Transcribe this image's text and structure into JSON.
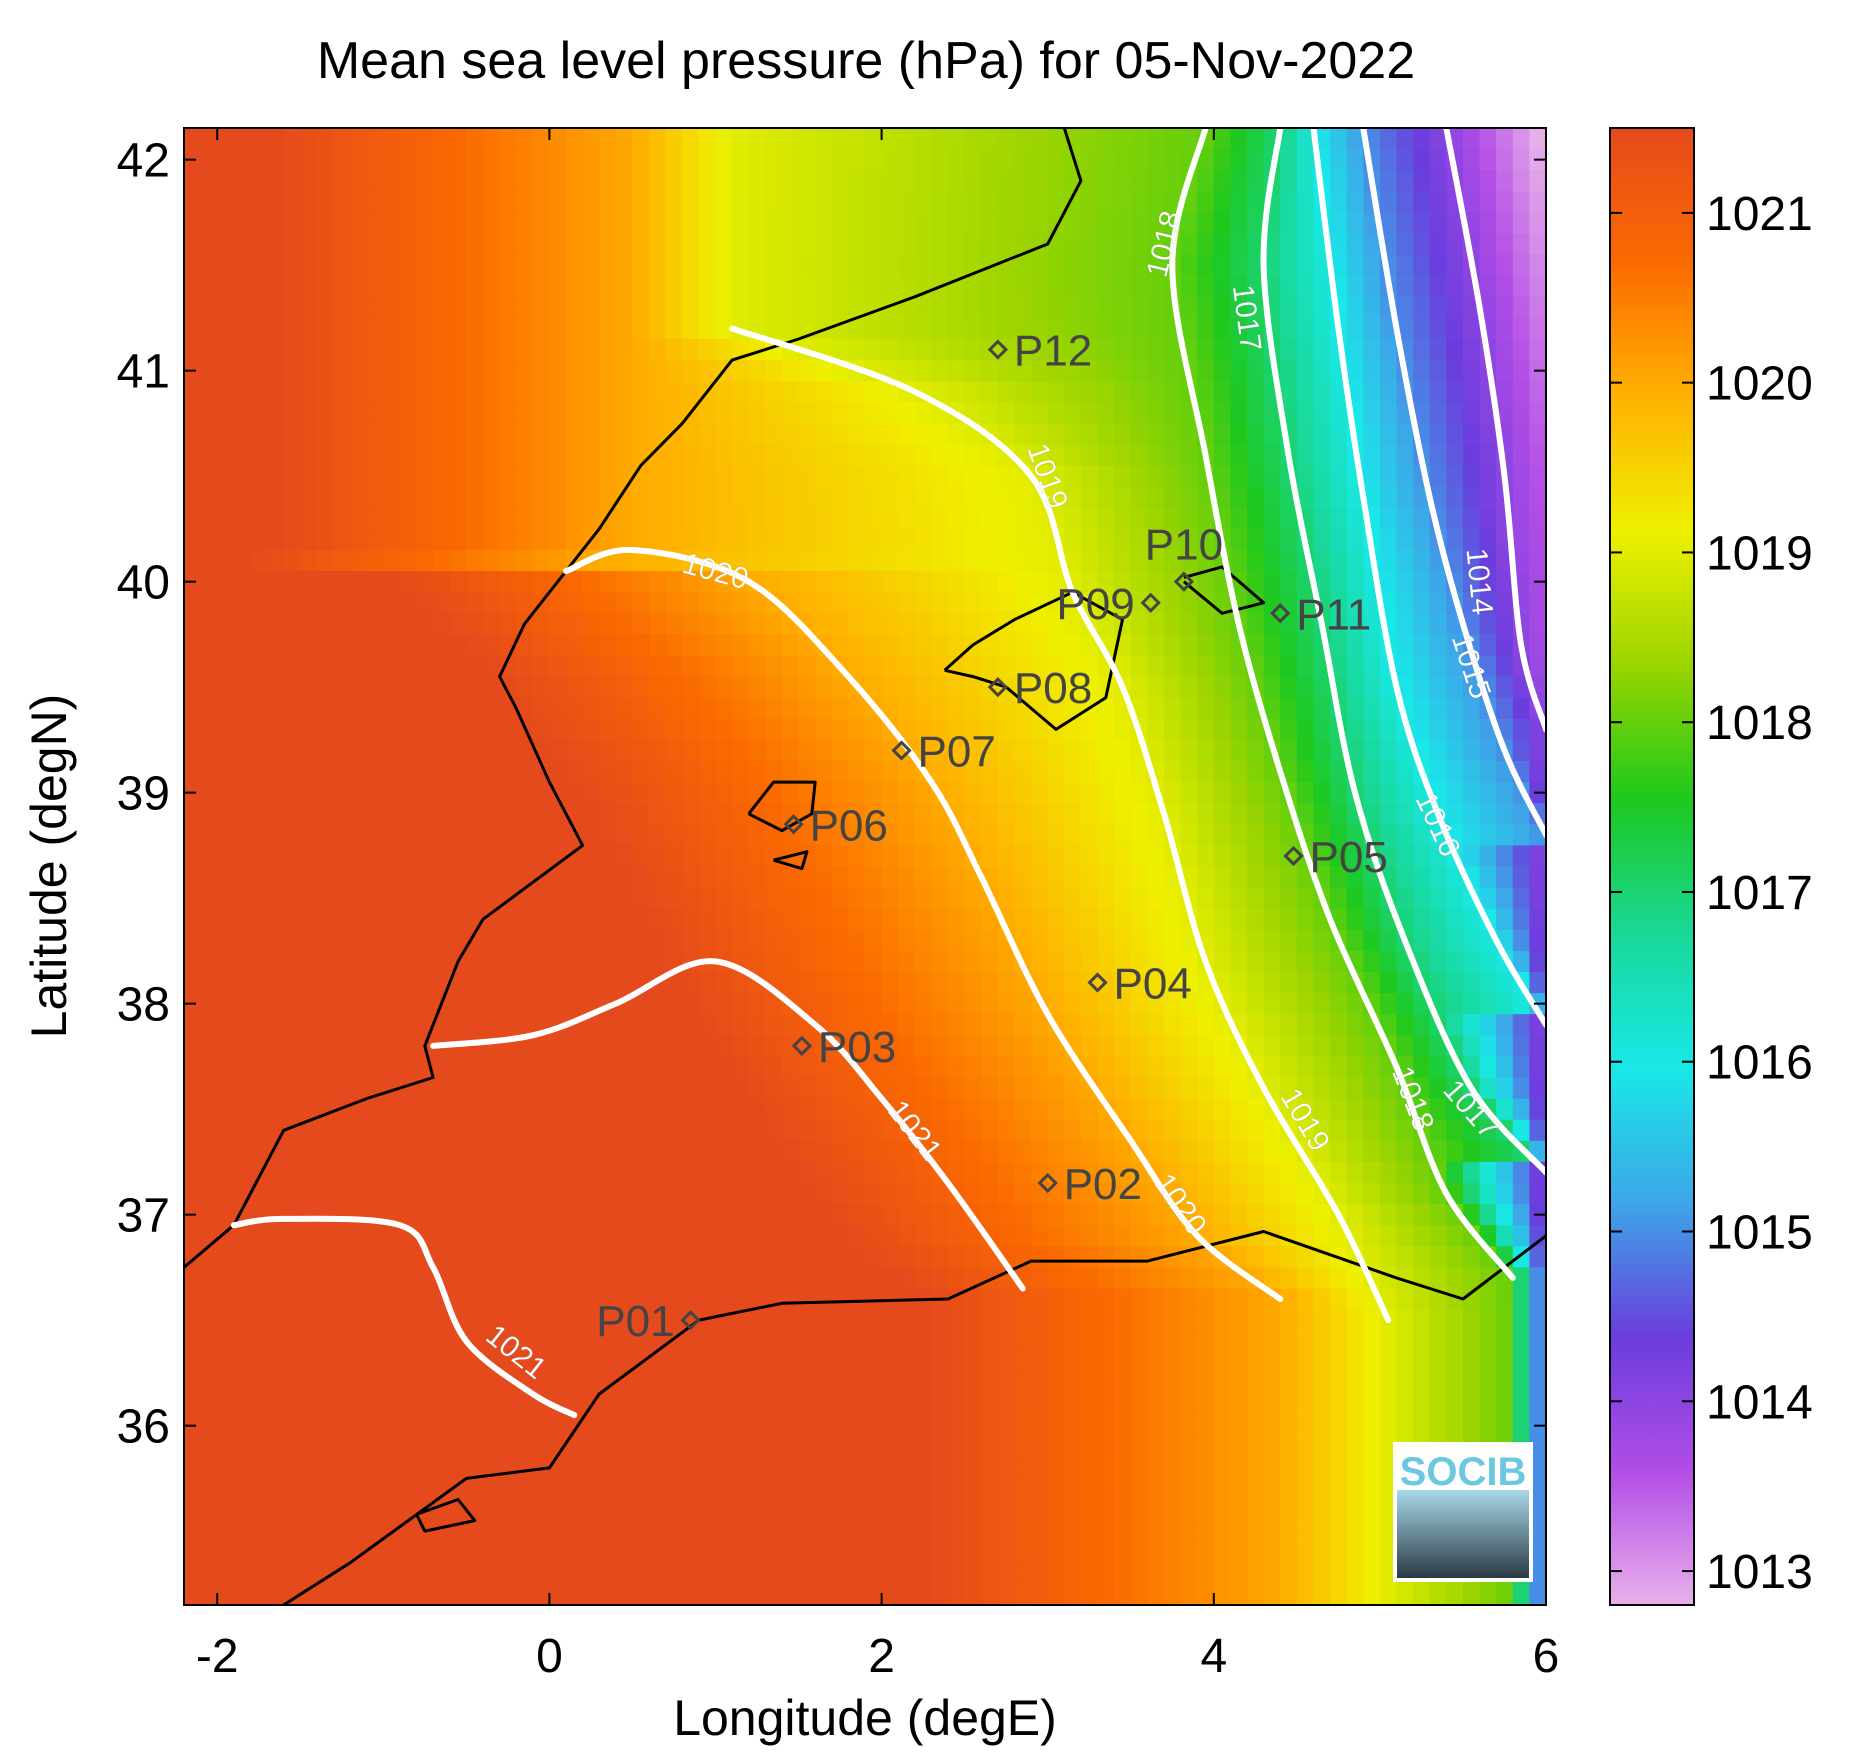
{
  "title": "Mean sea level pressure (hPa) for 05-Nov-2022",
  "xlabel": "Longitude (degE)",
  "ylabel": "Latitude (degN)",
  "logo_text": "SOCIB",
  "chart_data": {
    "type": "heatmap",
    "variable": "Mean sea level pressure",
    "units": "hPa",
    "date": "05-Nov-2022",
    "xlim": [
      -2.2,
      6.0
    ],
    "ylim": [
      35.15,
      42.15
    ],
    "x_ticks": [
      -2,
      0,
      2,
      4,
      6
    ],
    "y_ticks": [
      36,
      37,
      38,
      39,
      40,
      41,
      42
    ],
    "colorbar": {
      "range": [
        1012.8,
        1021.5
      ],
      "ticks": [
        1013,
        1014,
        1015,
        1016,
        1017,
        1018,
        1019,
        1020,
        1021
      ],
      "colors": [
        "#e8b0ea",
        "#b24de6",
        "#6a3ddd",
        "#3da6e8",
        "#19e8e8",
        "#19d898",
        "#1ec81e",
        "#9ad400",
        "#eff000",
        "#ffb100",
        "#fb6a00",
        "#e44a1c"
      ]
    },
    "contours": [
      {
        "level": 1014,
        "label": "1014",
        "label_pos": [
          5.6,
          40.0
        ],
        "points": [
          [
            5.4,
            42.15
          ],
          [
            5.6,
            41.3
          ],
          [
            5.75,
            40.5
          ],
          [
            5.85,
            39.7
          ],
          [
            6.0,
            39.3
          ]
        ]
      },
      {
        "level": 1015,
        "label": "1015",
        "label_pos": [
          5.55,
          39.6
        ],
        "points": [
          [
            4.9,
            42.15
          ],
          [
            5.1,
            41.2
          ],
          [
            5.3,
            40.4
          ],
          [
            5.5,
            39.8
          ],
          [
            5.75,
            39.2
          ],
          [
            6.0,
            38.8
          ]
        ]
      },
      {
        "level": 1016,
        "label": "1016",
        "label_pos": [
          5.35,
          38.85
        ],
        "points": [
          [
            4.6,
            42.15
          ],
          [
            4.75,
            41.2
          ],
          [
            4.9,
            40.4
          ],
          [
            5.1,
            39.5
          ],
          [
            5.35,
            38.9
          ],
          [
            5.7,
            38.3
          ],
          [
            6.0,
            37.9
          ]
        ]
      },
      {
        "level": 1017,
        "label": "1017",
        "label_pos": [
          5.55,
          37.5
        ],
        "label2": "1017",
        "label2_pos": [
          4.2,
          41.25
        ],
        "points": [
          [
            4.4,
            42.15
          ],
          [
            4.3,
            41.5
          ],
          [
            4.45,
            40.6
          ],
          [
            4.65,
            39.8
          ],
          [
            4.85,
            39.0
          ],
          [
            5.15,
            38.3
          ],
          [
            5.55,
            37.6
          ],
          [
            6.0,
            37.2
          ]
        ]
      },
      {
        "level": 1018,
        "label": "1018",
        "label_pos": [
          5.2,
          37.55
        ],
        "label2": "1018",
        "label2_pos": [
          3.7,
          41.6
        ],
        "points": [
          [
            3.95,
            42.15
          ],
          [
            3.75,
            41.5
          ],
          [
            3.95,
            40.6
          ],
          [
            4.15,
            39.8
          ],
          [
            4.4,
            39.1
          ],
          [
            4.7,
            38.4
          ],
          [
            5.1,
            37.7
          ],
          [
            5.4,
            37.1
          ],
          [
            5.8,
            36.7
          ]
        ]
      },
      {
        "level": 1019,
        "label": "1019",
        "label_pos": [
          4.55,
          37.45
        ],
        "label2": "1019",
        "label2_pos": [
          3.0,
          40.5
        ],
        "points": [
          [
            1.1,
            41.2
          ],
          [
            2.2,
            40.9
          ],
          [
            2.9,
            40.5
          ],
          [
            3.15,
            39.95
          ],
          [
            3.45,
            39.5
          ],
          [
            3.7,
            38.9
          ],
          [
            3.95,
            38.2
          ],
          [
            4.3,
            37.6
          ],
          [
            4.75,
            37.0
          ],
          [
            5.05,
            36.5
          ]
        ]
      },
      {
        "level": 1020,
        "label": "1020",
        "label_pos": [
          3.8,
          37.05
        ],
        "label2": "1020",
        "label2_pos": [
          1.0,
          40.05
        ],
        "points": [
          [
            0.1,
            40.05
          ],
          [
            0.5,
            40.15
          ],
          [
            1.2,
            40.0
          ],
          [
            1.8,
            39.55
          ],
          [
            2.3,
            39.05
          ],
          [
            2.6,
            38.6
          ],
          [
            3.0,
            37.95
          ],
          [
            3.5,
            37.35
          ],
          [
            3.9,
            36.9
          ],
          [
            4.4,
            36.6
          ]
        ]
      },
      {
        "level": 1021,
        "label": "1021",
        "label_pos": [
          2.2,
          37.4
        ],
        "points": [
          [
            -0.7,
            37.8
          ],
          [
            -0.1,
            37.85
          ],
          [
            0.4,
            38.0
          ],
          [
            1.0,
            38.2
          ],
          [
            1.6,
            37.9
          ],
          [
            2.0,
            37.55
          ],
          [
            2.4,
            37.15
          ],
          [
            2.85,
            36.65
          ]
        ]
      },
      {
        "level": 1021,
        "label": "1021",
        "label_pos": [
          -0.2,
          36.35
        ],
        "points": [
          [
            -1.9,
            36.95
          ],
          [
            -1.6,
            36.98
          ],
          [
            -0.9,
            36.95
          ],
          [
            -0.7,
            36.75
          ],
          [
            -0.5,
            36.4
          ],
          [
            -0.1,
            36.15
          ],
          [
            0.15,
            36.05
          ]
        ]
      }
    ],
    "stations": [
      {
        "id": "P01",
        "lon": 0.85,
        "lat": 36.5,
        "label_side": "left"
      },
      {
        "id": "P02",
        "lon": 3.0,
        "lat": 37.15,
        "label_side": "right"
      },
      {
        "id": "P03",
        "lon": 1.52,
        "lat": 37.8,
        "label_side": "right"
      },
      {
        "id": "P04",
        "lon": 3.3,
        "lat": 38.1,
        "label_side": "right"
      },
      {
        "id": "P05",
        "lon": 4.48,
        "lat": 38.7,
        "label_side": "right"
      },
      {
        "id": "P06",
        "lon": 1.47,
        "lat": 38.85,
        "label_side": "right"
      },
      {
        "id": "P07",
        "lon": 2.12,
        "lat": 39.2,
        "label_side": "right"
      },
      {
        "id": "P08",
        "lon": 2.7,
        "lat": 39.5,
        "label_side": "right"
      },
      {
        "id": "P09",
        "lon": 3.62,
        "lat": 39.9,
        "label_side": "left"
      },
      {
        "id": "P10",
        "lon": 3.82,
        "lat": 40.0,
        "label_side": "above"
      },
      {
        "id": "P11",
        "lon": 4.4,
        "lat": 39.85,
        "label_side": "right"
      },
      {
        "id": "P12",
        "lon": 2.7,
        "lat": 41.1,
        "label_side": "right"
      }
    ],
    "coastlines": [
      {
        "name": "iberia",
        "points": [
          [
            -2.2,
            36.75
          ],
          [
            -1.9,
            36.95
          ],
          [
            -1.6,
            37.4
          ],
          [
            -1.1,
            37.55
          ],
          [
            -0.7,
            37.65
          ],
          [
            -0.75,
            37.8
          ],
          [
            -0.55,
            38.2
          ],
          [
            -0.4,
            38.4
          ],
          [
            0.2,
            38.75
          ],
          [
            0.0,
            39.05
          ],
          [
            -0.2,
            39.4
          ],
          [
            -0.3,
            39.55
          ],
          [
            -0.15,
            39.8
          ],
          [
            0.3,
            40.25
          ],
          [
            0.55,
            40.55
          ],
          [
            0.8,
            40.75
          ],
          [
            1.1,
            41.05
          ],
          [
            1.5,
            41.15
          ],
          [
            2.2,
            41.35
          ],
          [
            3.0,
            41.6
          ],
          [
            3.2,
            41.9
          ],
          [
            3.1,
            42.15
          ]
        ]
      },
      {
        "name": "africa",
        "points": [
          [
            -1.7,
            35.1
          ],
          [
            -1.2,
            35.35
          ],
          [
            -0.5,
            35.75
          ],
          [
            0.0,
            35.8
          ],
          [
            0.3,
            36.15
          ],
          [
            0.9,
            36.5
          ],
          [
            1.4,
            36.58
          ],
          [
            2.4,
            36.6
          ],
          [
            2.9,
            36.78
          ],
          [
            3.6,
            36.78
          ],
          [
            4.3,
            36.92
          ],
          [
            5.1,
            36.7
          ],
          [
            5.5,
            36.6
          ],
          [
            6.0,
            36.9
          ]
        ]
      },
      {
        "name": "mallorca",
        "points": [
          [
            2.38,
            39.58
          ],
          [
            2.55,
            39.7
          ],
          [
            2.8,
            39.82
          ],
          [
            3.15,
            39.95
          ],
          [
            3.45,
            39.82
          ],
          [
            3.35,
            39.45
          ],
          [
            3.05,
            39.3
          ],
          [
            2.75,
            39.5
          ],
          [
            2.55,
            39.55
          ],
          [
            2.38,
            39.58
          ]
        ]
      },
      {
        "name": "menorca",
        "points": [
          [
            3.82,
            40.02
          ],
          [
            4.05,
            40.07
          ],
          [
            4.3,
            39.9
          ],
          [
            4.05,
            39.85
          ],
          [
            3.82,
            40.0
          ]
        ]
      },
      {
        "name": "ibiza",
        "points": [
          [
            1.2,
            38.9
          ],
          [
            1.35,
            39.05
          ],
          [
            1.6,
            39.05
          ],
          [
            1.58,
            38.9
          ],
          [
            1.4,
            38.82
          ],
          [
            1.2,
            38.9
          ]
        ]
      },
      {
        "name": "formentera",
        "points": [
          [
            1.35,
            38.68
          ],
          [
            1.55,
            38.72
          ],
          [
            1.52,
            38.64
          ],
          [
            1.35,
            38.68
          ]
        ]
      },
      {
        "name": "alboran",
        "points": [
          [
            -0.8,
            35.58
          ],
          [
            -0.55,
            35.65
          ],
          [
            -0.45,
            35.55
          ],
          [
            -0.75,
            35.5
          ],
          [
            -0.8,
            35.58
          ]
        ]
      }
    ]
  }
}
